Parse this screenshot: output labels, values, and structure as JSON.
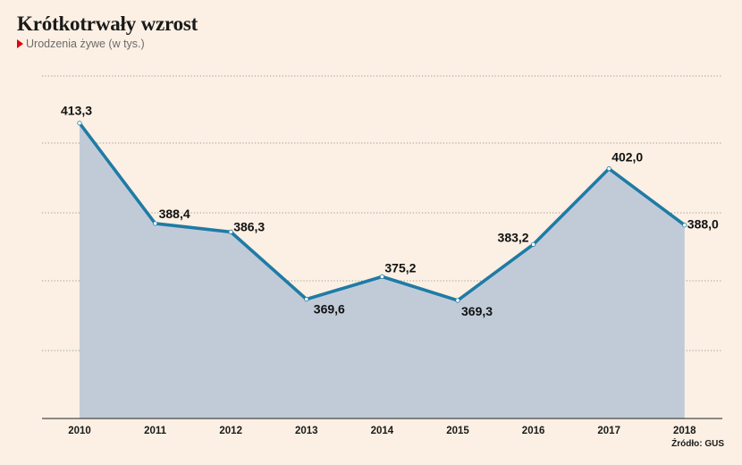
{
  "header": {
    "title": "Krótkotrwały wzrost",
    "subtitle": "Urodzenia żywe (w tys.)"
  },
  "footer": {
    "source": "Źródło: GUS"
  },
  "colors": {
    "line": "#1f7ba6",
    "area": "#c1cbd8",
    "grid": "#9a9a9a",
    "accent": "#e3000f"
  },
  "chart_data": {
    "type": "area",
    "title": "Krótkotrwały wzrost",
    "subtitle": "Urodzenia żywe (w tys.)",
    "xlabel": "",
    "ylabel": "",
    "categories": [
      "2010",
      "2011",
      "2012",
      "2013",
      "2014",
      "2015",
      "2016",
      "2017",
      "2018"
    ],
    "values": [
      413.3,
      388.4,
      386.3,
      369.6,
      375.2,
      369.3,
      383.2,
      402.0,
      388.0
    ],
    "value_labels": [
      "413,3",
      "388,4",
      "386,3",
      "369,6",
      "375,2",
      "369,3",
      "383,2",
      "402,0",
      "388,0"
    ],
    "ylim": [
      340,
      425
    ],
    "grid": true
  }
}
